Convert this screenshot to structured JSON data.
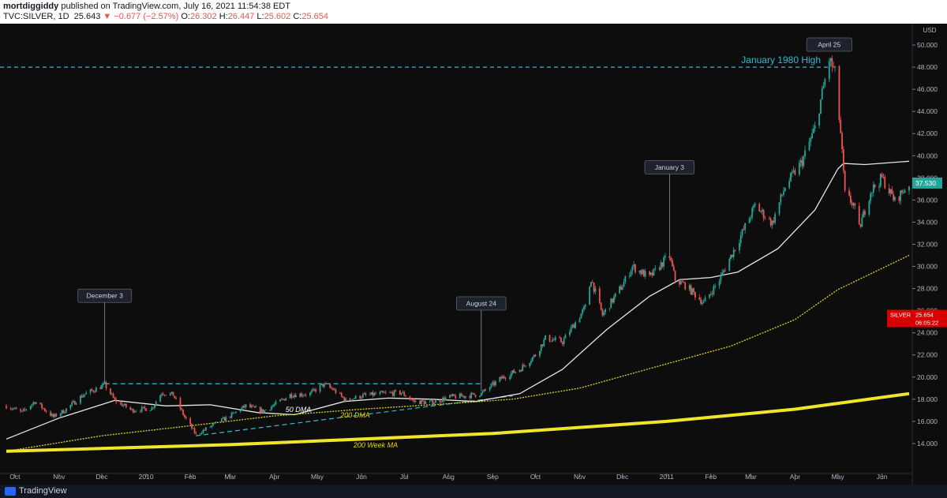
{
  "header": {
    "author": "mortdiggiddy",
    "published": " published on TradingView.com, July 16, 2021 11:54:38 EDT",
    "symbol": "TVC:SILVER, 1D",
    "last": "25.643",
    "change": "−0.677 (−2.57%)",
    "o_label": "O:",
    "o": "26.302",
    "h_label": "H:",
    "h": "26.447",
    "l_label": "L:",
    "l": "25.602",
    "c_label": "C:",
    "c": "25.654"
  },
  "footer": {
    "brand": "TradingView"
  },
  "colors": {
    "background": "#0d0d0d",
    "up": "#26a69a",
    "down": "#ef5350",
    "ma50": "#e6e6e6",
    "ma200": "#e0d21a",
    "ma200w": "#f0e52a",
    "dashed": "#35b8d6"
  },
  "chart_data": {
    "type": "candlestick",
    "currency": "USD",
    "y_axis": {
      "range": [
        12.0,
        51.5
      ],
      "ticks": [
        "14.000",
        "16.000",
        "18.000",
        "20.000",
        "22.000",
        "24.000",
        "26.000",
        "28.000",
        "30.000",
        "32.000",
        "34.000",
        "36.000",
        "38.000",
        "40.000",
        "42.000",
        "44.000",
        "46.000",
        "48.000",
        "50.000"
      ]
    },
    "x_axis": {
      "range": [
        "2009-09-25",
        "2011-06-20"
      ],
      "ticks": [
        {
          "label": "Oct",
          "date": "2009-10-01"
        },
        {
          "label": "Nov",
          "date": "2009-11-01"
        },
        {
          "label": "Dec",
          "date": "2009-12-01"
        },
        {
          "label": "2010",
          "date": "2010-01-01"
        },
        {
          "label": "Feb",
          "date": "2010-02-01"
        },
        {
          "label": "Mar",
          "date": "2010-03-01"
        },
        {
          "label": "Apr",
          "date": "2010-04-01"
        },
        {
          "label": "May",
          "date": "2010-05-01"
        },
        {
          "label": "Jun",
          "date": "2010-06-01"
        },
        {
          "label": "Jul",
          "date": "2010-07-01"
        },
        {
          "label": "Aug",
          "date": "2010-08-01"
        },
        {
          "label": "Sep",
          "date": "2010-09-01"
        },
        {
          "label": "Oct",
          "date": "2010-10-01"
        },
        {
          "label": "Nov",
          "date": "2010-11-01"
        },
        {
          "label": "Dec",
          "date": "2010-12-01"
        },
        {
          "label": "2011",
          "date": "2011-01-01"
        },
        {
          "label": "Feb",
          "date": "2011-02-01"
        },
        {
          "label": "Mar",
          "date": "2011-03-01"
        },
        {
          "label": "Apr",
          "date": "2011-04-01"
        },
        {
          "label": "May",
          "date": "2011-05-01"
        },
        {
          "label": "Jun",
          "date": "2011-06-01"
        }
      ]
    },
    "price_path": [
      [
        "2009-09-25",
        17.4
      ],
      [
        "2009-10-06",
        16.8
      ],
      [
        "2009-10-15",
        17.8
      ],
      [
        "2009-10-28",
        16.4
      ],
      [
        "2009-11-05",
        17.0
      ],
      [
        "2009-11-18",
        18.4
      ],
      [
        "2009-12-03",
        19.3
      ],
      [
        "2009-12-10",
        17.9
      ],
      [
        "2009-12-22",
        17.0
      ],
      [
        "2010-01-05",
        17.2
      ],
      [
        "2010-01-12",
        18.6
      ],
      [
        "2010-01-20",
        18.4
      ],
      [
        "2010-01-28",
        16.4
      ],
      [
        "2010-02-05",
        14.8
      ],
      [
        "2010-02-16",
        15.6
      ],
      [
        "2010-03-01",
        16.5
      ],
      [
        "2010-03-12",
        17.4
      ],
      [
        "2010-03-24",
        16.9
      ],
      [
        "2010-04-01",
        17.5
      ],
      [
        "2010-04-12",
        18.4
      ],
      [
        "2010-04-26",
        18.5
      ],
      [
        "2010-05-05",
        19.3
      ],
      [
        "2010-05-12",
        18.9
      ],
      [
        "2010-05-21",
        17.9
      ],
      [
        "2010-06-01",
        18.3
      ],
      [
        "2010-06-15",
        18.5
      ],
      [
        "2010-06-29",
        18.6
      ],
      [
        "2010-07-08",
        17.8
      ],
      [
        "2010-07-20",
        17.7
      ],
      [
        "2010-08-02",
        18.2
      ],
      [
        "2010-08-13",
        18.3
      ],
      [
        "2010-08-24",
        18.5
      ],
      [
        "2010-09-07",
        19.9
      ],
      [
        "2010-09-20",
        20.7
      ],
      [
        "2010-10-01",
        22.0
      ],
      [
        "2010-10-08",
        23.5
      ],
      [
        "2010-10-20",
        23.2
      ],
      [
        "2010-11-05",
        26.3
      ],
      [
        "2010-11-09",
        28.9
      ],
      [
        "2010-11-17",
        25.6
      ],
      [
        "2010-12-01",
        28.3
      ],
      [
        "2010-12-08",
        30.0
      ],
      [
        "2010-12-20",
        29.0
      ],
      [
        "2010-12-31",
        30.6
      ],
      [
        "2011-01-03",
        30.9
      ],
      [
        "2011-01-07",
        28.8
      ],
      [
        "2011-01-14",
        28.3
      ],
      [
        "2011-01-27",
        26.7
      ],
      [
        "2011-02-07",
        28.8
      ],
      [
        "2011-02-21",
        32.5
      ],
      [
        "2011-03-04",
        35.5
      ],
      [
        "2011-03-16",
        33.9
      ],
      [
        "2011-03-25",
        37.2
      ],
      [
        "2011-04-06",
        39.5
      ],
      [
        "2011-04-15",
        42.5
      ],
      [
        "2011-04-25",
        48.7
      ],
      [
        "2011-04-29",
        47.5
      ],
      [
        "2011-05-03",
        42.0
      ],
      [
        "2011-05-06",
        36.5
      ],
      [
        "2011-05-12",
        35.6
      ],
      [
        "2011-05-16",
        33.4
      ],
      [
        "2011-05-24",
        36.8
      ],
      [
        "2011-06-01",
        38.0
      ],
      [
        "2011-06-10",
        35.9
      ],
      [
        "2011-06-20",
        37.5
      ]
    ],
    "moving_averages": [
      {
        "name": "50 DMA",
        "color": "#e6e6e6",
        "points": [
          [
            "2009-09-25",
            14.4
          ],
          [
            "2009-11-01",
            16.3
          ],
          [
            "2009-12-10",
            17.9
          ],
          [
            "2010-01-15",
            17.4
          ],
          [
            "2010-02-15",
            17.5
          ],
          [
            "2010-03-20",
            16.8
          ],
          [
            "2010-04-15",
            16.6
          ],
          [
            "2010-05-20",
            17.8
          ],
          [
            "2010-06-20",
            18.1
          ],
          [
            "2010-07-20",
            18.0
          ],
          [
            "2010-08-20",
            17.8
          ],
          [
            "2010-09-20",
            18.5
          ],
          [
            "2010-10-20",
            20.7
          ],
          [
            "2010-11-20",
            24.3
          ],
          [
            "2010-12-20",
            27.3
          ],
          [
            "2011-01-10",
            28.8
          ],
          [
            "2011-02-01",
            29.0
          ],
          [
            "2011-02-20",
            29.5
          ],
          [
            "2011-03-20",
            31.6
          ],
          [
            "2011-04-15",
            35.1
          ],
          [
            "2011-05-01",
            38.8
          ],
          [
            "2011-05-05",
            39.3
          ],
          [
            "2011-05-20",
            39.2
          ],
          [
            "2011-06-20",
            39.5
          ]
        ]
      },
      {
        "name": "200 DMA",
        "color": "#e0d21a",
        "points": [
          [
            "2009-09-25",
            13.3
          ],
          [
            "2009-12-01",
            14.7
          ],
          [
            "2010-02-01",
            15.6
          ],
          [
            "2010-04-01",
            16.5
          ],
          [
            "2010-06-01",
            17.1
          ],
          [
            "2010-08-01",
            17.6
          ],
          [
            "2010-09-15",
            18.0
          ],
          [
            "2010-11-01",
            19.0
          ],
          [
            "2011-01-01",
            21.2
          ],
          [
            "2011-02-15",
            22.8
          ],
          [
            "2011-04-01",
            25.2
          ],
          [
            "2011-05-01",
            27.9
          ],
          [
            "2011-06-20",
            31.0
          ]
        ]
      },
      {
        "name": "200 Week MA",
        "color": "#f0e52a",
        "points": [
          [
            "2009-09-25",
            13.3
          ],
          [
            "2010-03-01",
            13.9
          ],
          [
            "2010-09-01",
            14.9
          ],
          [
            "2011-01-01",
            16.0
          ],
          [
            "2011-04-01",
            17.1
          ],
          [
            "2011-06-20",
            18.5
          ]
        ]
      }
    ],
    "annotations": [
      {
        "label": "December 3",
        "date": "2009-12-03",
        "price": 19.4
      },
      {
        "label": "August 24",
        "date": "2010-08-24",
        "price": 18.7
      },
      {
        "label": "January 3",
        "date": "2011-01-03",
        "price": 31.0
      },
      {
        "label": "April 25",
        "date": "2011-04-25",
        "price": 49.5
      }
    ],
    "lines": [
      {
        "type": "horizontal",
        "label": "January 1980 High",
        "price": 48.0
      },
      {
        "type": "resistance",
        "from": [
          "2009-12-03",
          19.4
        ],
        "to": [
          "2010-08-24",
          19.4
        ]
      },
      {
        "type": "support",
        "from": [
          "2010-02-05",
          14.7
        ],
        "to": [
          "2010-09-15",
          18.3
        ]
      }
    ],
    "ma_labels": [
      "50 DMA",
      "200 DMA",
      "200 Week MA"
    ],
    "price_tags": [
      {
        "label": "37.530",
        "price": 37.53,
        "color": "#26a69a"
      },
      {
        "label": "SILVER",
        "value": "25.654",
        "time": "06:05:22",
        "price": 25.65,
        "color": "#d50000"
      }
    ]
  }
}
